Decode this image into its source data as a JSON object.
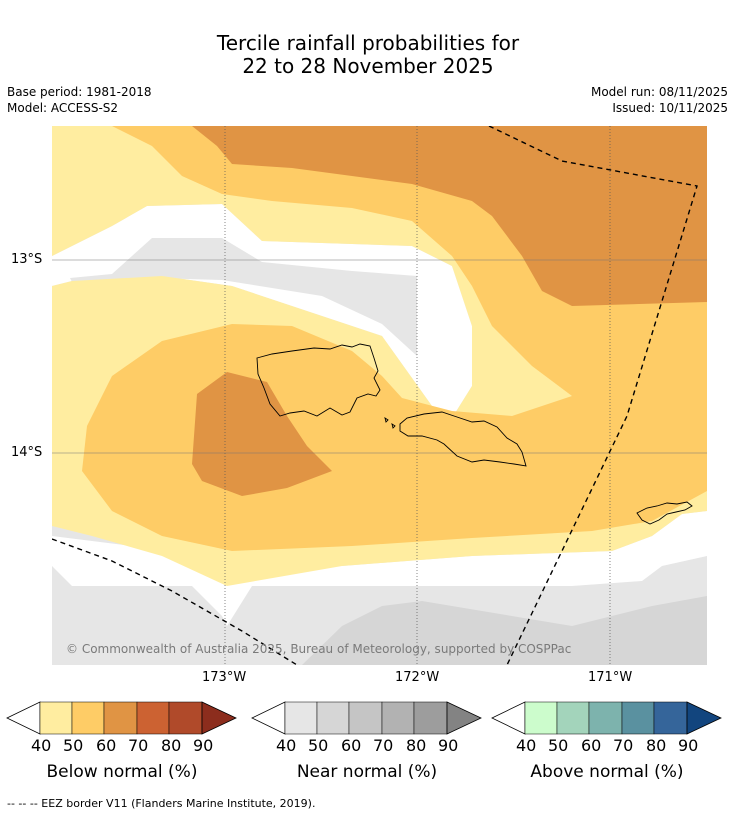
{
  "header": {
    "title_line1": "Tercile rainfall probabilities for",
    "title_line2": "22 to 28 November 2025",
    "base_period": "Base period: 1981-2018",
    "model": "Model: ACCESS-S2",
    "model_run": "Model run: 08/11/2025",
    "issued": "Issued: 10/11/2025"
  },
  "map": {
    "lat_labels": [
      "13°S",
      "14°S"
    ],
    "lon_labels": [
      "173°W",
      "172°W",
      "171°W"
    ],
    "copyright": "© Commonwealth of Australia 2025, Bureau of Meteorology, supported by COSPPac"
  },
  "legend": {
    "ticks": [
      "40",
      "50",
      "60",
      "70",
      "80",
      "90"
    ],
    "below": {
      "label": "Below normal (%)",
      "colors": [
        "#ffeda0",
        "#fecc66",
        "#e09444",
        "#cc6232",
        "#b04a2a",
        "#8c2d1d"
      ]
    },
    "near": {
      "label": "Near normal (%)",
      "colors": [
        "#e6e6e6",
        "#d6d6d6",
        "#c5c5c5",
        "#b2b2b2",
        "#9d9d9d",
        "#838383"
      ]
    },
    "above": {
      "label": "Above normal (%)",
      "colors": [
        "#ccfccc",
        "#a3d4bb",
        "#7db3ad",
        "#5a91a0",
        "#35659a",
        "#12457e"
      ]
    }
  },
  "footnote": "--  --  -- EEZ border V11 (Flanders Marine Institute, 2019)."
}
